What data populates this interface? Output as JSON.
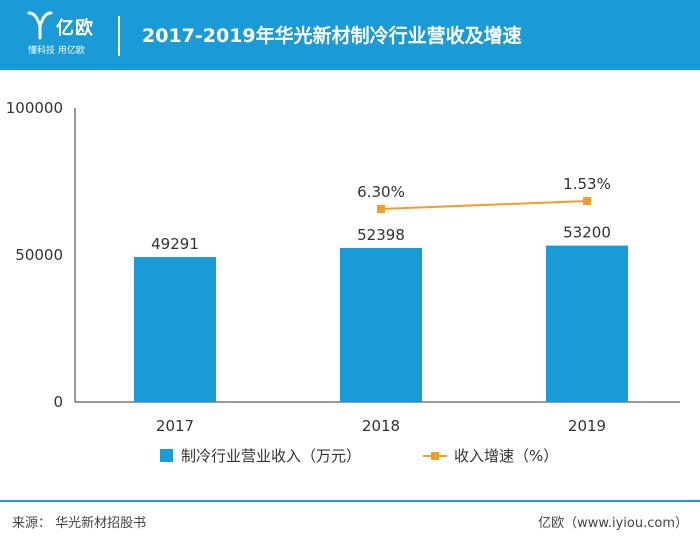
{
  "header": {
    "logo_name": "亿欧",
    "logo_slogan": "懂科技 用亿欧",
    "title": "2017-2019年华光新材制冷行业营收及增速",
    "background": "#1a9ad6"
  },
  "chart_data": {
    "type": "bar",
    "title": "2017-2019年华光新材制冷行业营收及增速",
    "categories": [
      "2017",
      "2018",
      "2019"
    ],
    "ylim": [
      0,
      100000
    ],
    "yticks": [
      "0",
      "50000",
      "100000"
    ],
    "grid": false,
    "legend_position": "bottom",
    "series": [
      {
        "name": "制冷行业营业收入（万元）",
        "type": "bar",
        "values": [
          49291,
          52398,
          53200
        ],
        "labels": [
          "49291",
          "52398",
          "53200"
        ],
        "color": "#1a9ad6"
      },
      {
        "name": "收入增速（%）",
        "type": "line",
        "values": [
          null,
          6.3,
          1.53
        ],
        "labels": [
          "",
          "6.30%",
          "1.53%"
        ],
        "color": "#f39c2a"
      }
    ]
  },
  "footer": {
    "source": "来源：  华光新材招股书",
    "brand": "亿欧（www.iyiou.com）",
    "line_color": "#1a9ad6"
  }
}
